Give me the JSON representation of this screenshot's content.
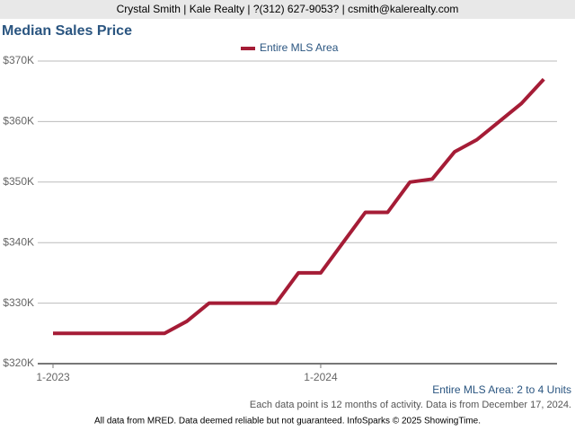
{
  "header": "Crystal Smith | Kale Realty | ?(312) 627-9053? | csmith@kalerealty.com",
  "chart_data": {
    "type": "line",
    "title": "Median Sales Price",
    "categories": [
      "1-2023",
      null,
      null,
      null,
      null,
      null,
      null,
      null,
      null,
      null,
      null,
      null,
      "1-2024",
      null,
      null,
      null,
      null,
      null,
      null,
      null,
      null,
      null,
      null
    ],
    "series": [
      {
        "name": "Entire MLS Area",
        "color": "#a51c36",
        "values": [
          325000,
          325000,
          325000,
          325000,
          325000,
          325000,
          327000,
          330000,
          330000,
          330000,
          330000,
          335000,
          335000,
          340000,
          345000,
          345000,
          350000,
          350500,
          355000,
          357000,
          360000,
          363000,
          367000
        ]
      }
    ],
    "ylim": [
      320000,
      370000
    ],
    "yticks": [
      {
        "value": 320000,
        "label": "$320K"
      },
      {
        "value": 330000,
        "label": "$330K"
      },
      {
        "value": 340000,
        "label": "$340K"
      },
      {
        "value": 350000,
        "label": "$350K"
      },
      {
        "value": 360000,
        "label": "$360K"
      },
      {
        "value": 370000,
        "label": "$370K"
      }
    ],
    "grid": true,
    "legend": "top",
    "annotations": [
      "Entire MLS Area: 2 to 4 Units",
      "Each data point is 12 months of activity. Data is from December 17, 2024."
    ]
  },
  "footer": "All data from MRED. Data deemed reliable but not guaranteed. InfoSparks © 2025 ShowingTime."
}
